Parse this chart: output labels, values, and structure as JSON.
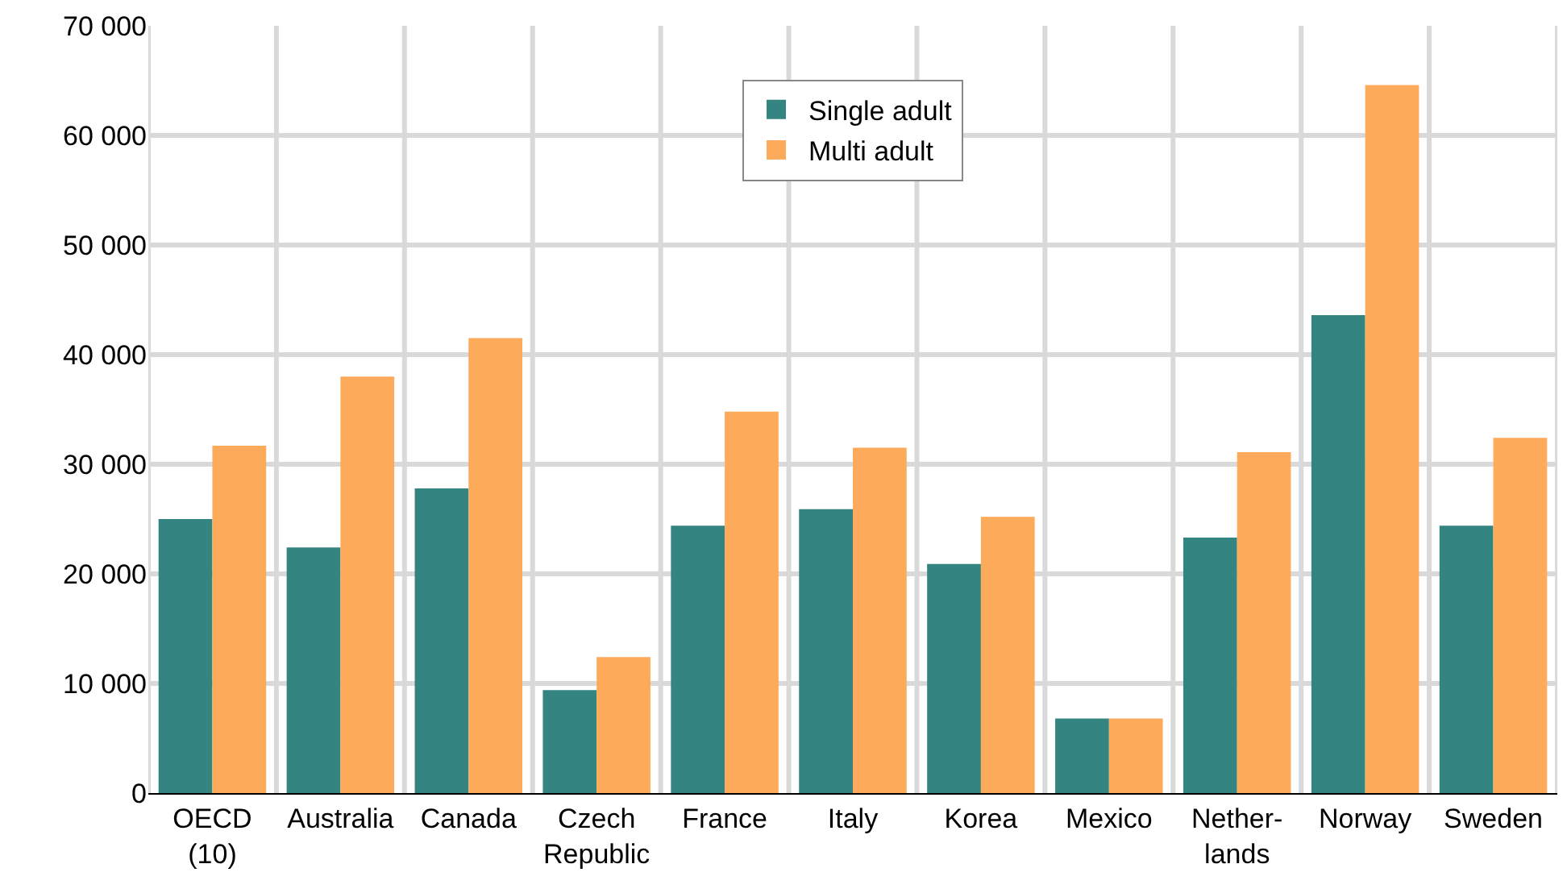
{
  "chart_data": {
    "type": "bar",
    "categories": [
      "OECD\n(10)",
      "Australia",
      "Canada",
      "Czech\nRepublic",
      "France",
      "Italy",
      "Korea",
      "Mexico",
      "Nether-\nlands",
      "Norway",
      "Sweden"
    ],
    "series": [
      {
        "name": "Single adult",
        "color": "#348482",
        "values": [
          25000,
          22400,
          27800,
          9400,
          24400,
          25900,
          20900,
          6800,
          23300,
          43600,
          24400
        ]
      },
      {
        "name": "Multi adult",
        "color": "#fdaa5a",
        "values": [
          31700,
          38000,
          41500,
          12400,
          34800,
          31500,
          25200,
          6800,
          31100,
          64600,
          32400
        ]
      }
    ],
    "ylim": [
      0,
      70000
    ],
    "yticks": [
      {
        "value": 0,
        "label": "0"
      },
      {
        "value": 10000,
        "label": "10 000"
      },
      {
        "value": 20000,
        "label": "20 000"
      },
      {
        "value": 30000,
        "label": "30 000"
      },
      {
        "value": 40000,
        "label": "40 000"
      },
      {
        "value": 50000,
        "label": "50 000"
      },
      {
        "value": 60000,
        "label": "60 000"
      },
      {
        "value": 70000,
        "label": "70 000"
      }
    ],
    "grid": true,
    "legend": "top"
  }
}
